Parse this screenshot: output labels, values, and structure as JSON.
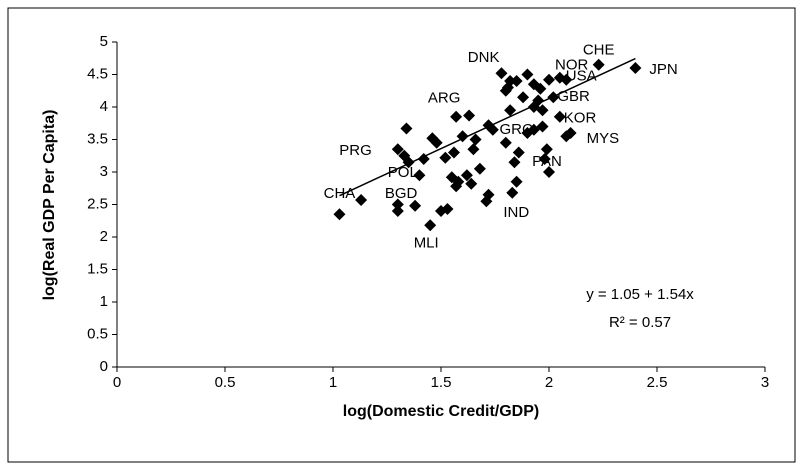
{
  "chart_data": {
    "type": "scatter",
    "x_label": "log(Domestic Credit/GDP)",
    "y_label": "log(Real GDP Per Capita)",
    "x": [
      1.03,
      1.13,
      1.3,
      1.3,
      1.38,
      1.3,
      1.33,
      1.35,
      1.34,
      1.42,
      1.4,
      1.45,
      1.46,
      1.48,
      1.5,
      1.53,
      1.55,
      1.52,
      1.56,
      1.57,
      1.58,
      1.6,
      1.57,
      1.63,
      1.62,
      1.65,
      1.66,
      1.64,
      1.68,
      1.71,
      1.72,
      1.72,
      1.74,
      1.78,
      1.8,
      1.81,
      1.82,
      1.83,
      1.85,
      1.84,
      1.86,
      1.8,
      1.82,
      1.85,
      1.88,
      1.9,
      1.93,
      1.93,
      1.95,
      1.9,
      1.93,
      1.96,
      1.97,
      1.97,
      1.98,
      1.99,
      2.0,
      2.0,
      2.02,
      2.05,
      2.05,
      2.08,
      2.1,
      2.08,
      2.23,
      2.4
    ],
    "y": [
      2.35,
      2.57,
      2.4,
      2.5,
      2.48,
      3.35,
      3.25,
      3.15,
      3.67,
      3.2,
      2.95,
      2.18,
      3.52,
      3.45,
      2.4,
      2.43,
      2.92,
      3.22,
      3.3,
      2.78,
      2.85,
      3.55,
      3.85,
      3.87,
      2.95,
      3.35,
      3.5,
      2.82,
      3.05,
      2.55,
      2.65,
      3.72,
      3.65,
      4.52,
      4.25,
      4.3,
      3.95,
      2.68,
      2.85,
      3.15,
      3.3,
      3.45,
      4.4,
      4.4,
      4.15,
      3.6,
      3.65,
      4.0,
      4.1,
      4.5,
      4.35,
      4.28,
      3.7,
      3.95,
      3.2,
      3.35,
      3.0,
      4.42,
      4.15,
      3.85,
      4.45,
      4.42,
      3.6,
      3.55,
      4.65,
      4.6
    ],
    "point_labels": [
      "CHA",
      null,
      null,
      null,
      "BGD",
      "PRG",
      null,
      null,
      null,
      null,
      null,
      "MLI",
      null,
      null,
      null,
      null,
      "POL",
      null,
      null,
      null,
      null,
      null,
      "ARG",
      null,
      null,
      null,
      null,
      null,
      null,
      null,
      null,
      null,
      null,
      "DNK",
      null,
      null,
      "GRC",
      "IND",
      null,
      null,
      null,
      null,
      null,
      null,
      null,
      null,
      null,
      null,
      null,
      null,
      null,
      null,
      null,
      null,
      null,
      null,
      "PAN",
      "NOR",
      "GBR",
      "KOR",
      "USA",
      null,
      "MYS",
      null,
      "CHE",
      "JPN"
    ],
    "color": "#000000",
    "trendline": {
      "intercept": 1.05,
      "slope": 1.54
    },
    "annotations": [
      "y = 1.05 + 1.54x",
      "R² = 0.57"
    ],
    "xlim": [
      0,
      3
    ],
    "xticks": [
      0,
      0.5,
      1,
      1.5,
      2,
      2.5,
      3
    ],
    "ylim": [
      0,
      5
    ],
    "yticks": [
      0,
      0.5,
      1,
      1.5,
      2,
      2.5,
      3,
      3.5,
      4,
      4.5,
      5
    ]
  }
}
